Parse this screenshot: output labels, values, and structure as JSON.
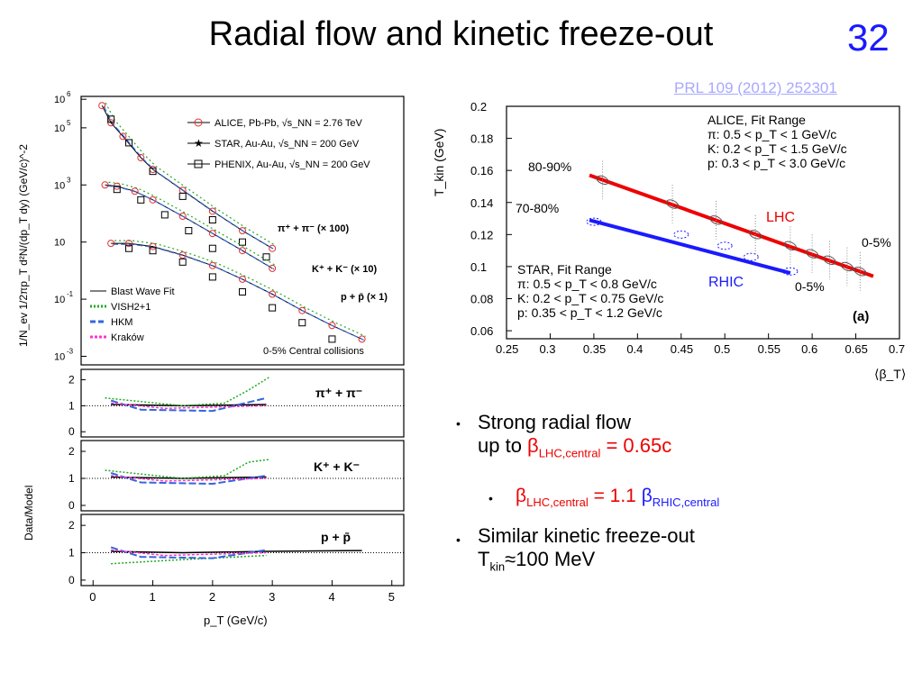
{
  "slide": {
    "title": "Radial flow and kinetic freeze-out",
    "page_number": "32",
    "reference": "PRL 109 (2012) 252301"
  },
  "bullets": {
    "b1_line1": "Strong radial flow",
    "b1_line2_pre": "up to ",
    "b1_beta": "β",
    "b1_sub": "LHC,central",
    "b1_val": " = 0.65c",
    "b2_beta": "β",
    "b2_sub": "LHC,central",
    "b2_mid": " = 1.1 ",
    "b2_beta2": "β",
    "b2_sub2": "RHIC,central",
    "b3_line1": "Similar kinetic freeze-out",
    "b3_T": "T",
    "b3_sub": "kin",
    "b3_val": "≈100 MeV"
  },
  "colors": {
    "red": "#ee0000",
    "blue": "#1a1aff",
    "alice": "#e23030",
    "green": "#22aa22",
    "pink": "#ff33cc",
    "hkm": "#3366dd"
  },
  "chart_data": [
    {
      "type": "scatter",
      "panel": "spectra",
      "xlabel": "p_T (GeV/c)",
      "ylabel": "1/N_ev 1/2πp_T d²N/(dp_T dy) (GeV/c)^-2",
      "xlim": [
        -0.2,
        5.2
      ],
      "ylim_log10": [
        -3.3,
        6.1
      ],
      "yscale": "log",
      "x_ticks": [
        "0",
        "1",
        "2",
        "3",
        "4",
        "5"
      ],
      "y_ticks": [
        {
          "exp": 6,
          "label": "10"
        },
        {
          "exp": 5,
          "label": "10"
        },
        {
          "exp": 3,
          "label": "10"
        },
        {
          "exp": 1,
          "label": "10"
        },
        {
          "exp": -1,
          "label": "10"
        },
        {
          "exp": -3,
          "label": "10"
        }
      ],
      "y_tick_exps": [
        "6",
        "5",
        "3",
        "",
        "-1",
        "-3"
      ],
      "legend": [
        "ALICE, Pb-Pb, √s_NN = 2.76 TeV",
        "STAR, Au-Au, √s_NN = 200 GeV",
        "PHENIX, Au-Au, √s_NN = 200 GeV"
      ],
      "model_legend": [
        "Blast Wave Fit",
        "VISH2+1",
        "HKM",
        "Kraków"
      ],
      "annotation": "0-5% Central collisions",
      "species_labels": [
        "π⁺ + π⁻ (× 100)",
        "K⁺ + K⁻ (× 10)",
        "p + p̄ (× 1)"
      ],
      "series": [
        {
          "name": "π⁺ + π⁻ (× 100)",
          "alice": [
            [
              0.15,
              600000
            ],
            [
              0.3,
              150000
            ],
            [
              0.5,
              50000
            ],
            [
              0.8,
              9000
            ],
            [
              1.0,
              3500
            ],
            [
              1.5,
              650
            ],
            [
              2.0,
              120
            ],
            [
              2.5,
              25
            ],
            [
              3.0,
              6
            ]
          ],
          "phenix": [
            [
              0.3,
              200000
            ],
            [
              0.6,
              30000
            ],
            [
              1.0,
              3000
            ],
            [
              1.5,
              400
            ],
            [
              2.0,
              60
            ],
            [
              2.5,
              10
            ],
            [
              2.9,
              3
            ]
          ]
        },
        {
          "name": "K⁺ + K⁻ (× 10)",
          "alice": [
            [
              0.2,
              1000
            ],
            [
              0.4,
              900
            ],
            [
              0.7,
              600
            ],
            [
              1.0,
              300
            ],
            [
              1.5,
              80
            ],
            [
              2.0,
              20
            ],
            [
              2.5,
              5
            ],
            [
              3.0,
              1.2
            ]
          ],
          "phenix": [
            [
              0.4,
              700
            ],
            [
              0.8,
              300
            ],
            [
              1.2,
              90
            ],
            [
              1.6,
              25
            ],
            [
              2.0,
              6
            ]
          ]
        },
        {
          "name": "p + p̄ (× 1)",
          "alice": [
            [
              0.3,
              9
            ],
            [
              0.6,
              9
            ],
            [
              1.0,
              7
            ],
            [
              1.5,
              3.5
            ],
            [
              2.0,
              1.5
            ],
            [
              2.5,
              0.5
            ],
            [
              3.0,
              0.15
            ],
            [
              3.5,
              0.04
            ],
            [
              4.0,
              0.012
            ],
            [
              4.5,
              0.004
            ]
          ],
          "phenix": [
            [
              0.6,
              6
            ],
            [
              1.0,
              5
            ],
            [
              1.5,
              2
            ],
            [
              2.0,
              0.6
            ],
            [
              2.5,
              0.18
            ],
            [
              3.0,
              0.05
            ],
            [
              3.5,
              0.015
            ],
            [
              4.0,
              0.004
            ]
          ]
        }
      ]
    },
    {
      "type": "line",
      "panel": "ratios",
      "ylabel": "Data/Model",
      "xlim": [
        -0.2,
        5.2
      ],
      "ylim": [
        -0.2,
        2.4
      ],
      "y_ticks": [
        "0",
        "1",
        "2"
      ],
      "labels": [
        "π⁺ + π⁻",
        "K⁺ + K⁻",
        "p + p̄"
      ]
    },
    {
      "type": "line",
      "panel": "blastwave",
      "xlabel": "⟨β_T⟩",
      "ylabel": "T_kin (GeV)",
      "xlim": [
        0.25,
        0.7
      ],
      "ylim": [
        0.055,
        0.2
      ],
      "x_ticks": [
        "0.25",
        "0.3",
        "0.35",
        "0.4",
        "0.45",
        "0.5",
        "0.55",
        "0.6",
        "0.65",
        "0.7"
      ],
      "y_ticks": [
        "0.06",
        "0.08",
        "0.1",
        "0.12",
        "0.14",
        "0.16",
        "0.18",
        "0.2"
      ],
      "series": [
        {
          "name": "LHC",
          "x": [
            0.345,
            0.67
          ],
          "y": [
            0.157,
            0.094
          ]
        },
        {
          "name": "RHIC",
          "x": [
            0.345,
            0.575
          ],
          "y": [
            0.129,
            0.096
          ]
        }
      ],
      "alice_box": [
        "ALICE, Fit Range",
        "π: 0.5 < p_T < 1 GeV/c",
        "K: 0.2 < p_T < 1.5 GeV/c",
        "p: 0.3 < p_T < 3.0 GeV/c"
      ],
      "star_box": [
        "STAR, Fit Range",
        "π: 0.5 < p_T < 0.8 GeV/c",
        "K: 0.2 < p_T < 0.75 GeV/c",
        "p: 0.35 < p_T < 1.2 GeV/c"
      ],
      "annotations": [
        "80-90%",
        "70-80%",
        "0-5%",
        "0-5%",
        "(a)"
      ]
    }
  ]
}
